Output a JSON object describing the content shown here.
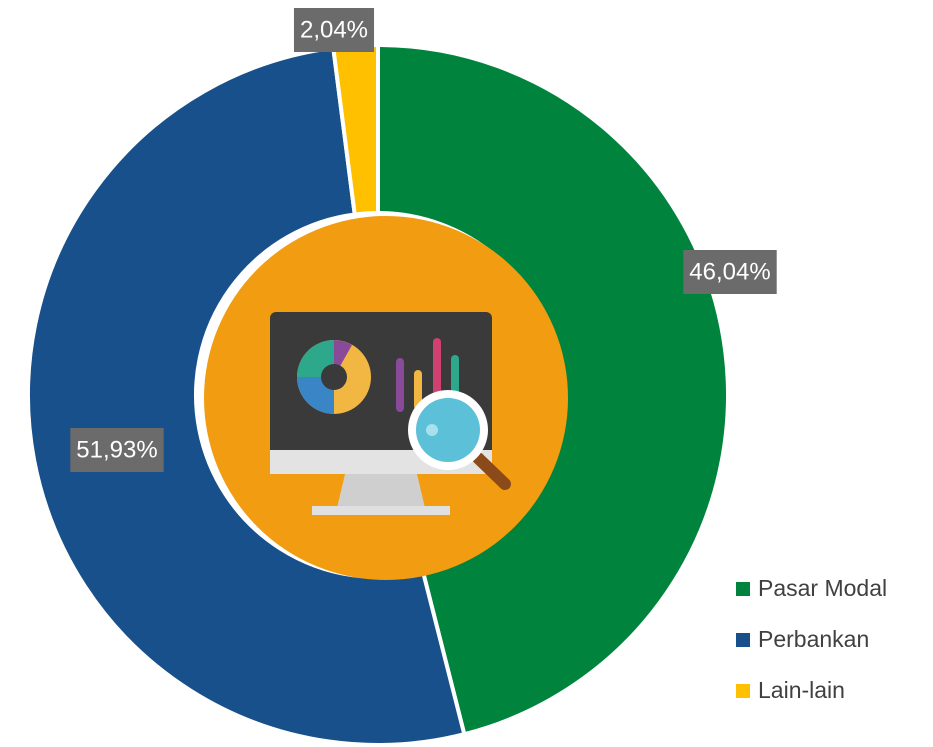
{
  "chart_data": {
    "type": "donut",
    "categories": [
      "Pasar Modal",
      "Perbankan",
      "Lain-lain"
    ],
    "values": [
      46.04,
      51.93,
      2.04
    ],
    "value_labels": [
      "46,04%",
      "51,93%",
      "2,04%"
    ],
    "colors": [
      "#00843d",
      "#17508a",
      "#ffc000"
    ],
    "legend": "right"
  }
}
